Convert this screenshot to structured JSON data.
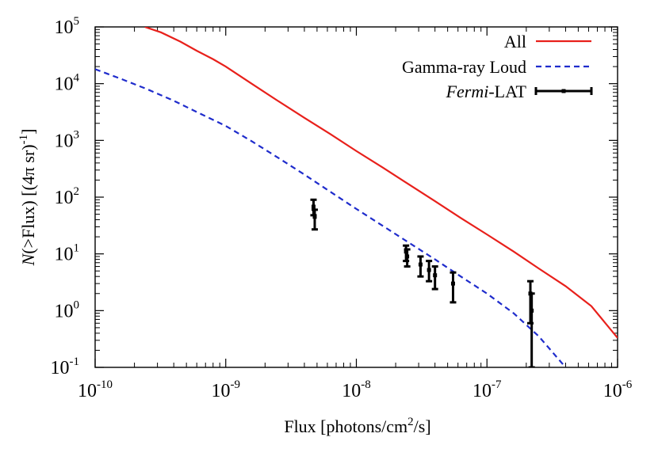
{
  "chart_data": {
    "type": "line",
    "xscale": "log",
    "yscale": "log",
    "xlim": [
      1e-10,
      1e-06
    ],
    "ylim": [
      0.1,
      100000
    ],
    "xlabel": "Flux [photons/cm²/s]",
    "xlabel_parts": {
      "pre": "Flux [photons/cm",
      "sup": "2",
      "post": "/s]"
    },
    "ylabel_parts": {
      "italic": "N",
      "pre": "(>Flux) [(4π sr)",
      "sup": "-1",
      "post": "]"
    },
    "x_ticks": [
      {
        "value": 1e-10,
        "base": "10",
        "exp": "-10"
      },
      {
        "value": 1e-09,
        "base": "10",
        "exp": "-9"
      },
      {
        "value": 1e-08,
        "base": "10",
        "exp": "-8"
      },
      {
        "value": 1e-07,
        "base": "10",
        "exp": "-7"
      },
      {
        "value": 1e-06,
        "base": "10",
        "exp": "-6"
      }
    ],
    "y_ticks": [
      {
        "value": 0.1,
        "base": "10",
        "exp": "-1"
      },
      {
        "value": 1,
        "base": "10",
        "exp": "0"
      },
      {
        "value": 10,
        "base": "10",
        "exp": "1"
      },
      {
        "value": 100,
        "base": "10",
        "exp": "2"
      },
      {
        "value": 1000,
        "base": "10",
        "exp": "3"
      },
      {
        "value": 10000,
        "base": "10",
        "exp": "4"
      },
      {
        "value": 100000,
        "base": "10",
        "exp": "5"
      }
    ],
    "legend_position": "top-right",
    "grid": false,
    "series": [
      {
        "name": "All",
        "style": "solid",
        "color": "#e8201b",
        "x": [
          2.4e-10,
          3.2e-10,
          4.5e-10,
          6e-10,
          8e-10,
          1e-09,
          1.6e-09,
          2.5e-09,
          4e-09,
          6.3e-09,
          1e-08,
          1.6e-08,
          2.5e-08,
          4e-08,
          6.3e-08,
          1e-07,
          1.6e-07,
          2.5e-07,
          4e-07,
          6.3e-07,
          1e-06
        ],
        "y": [
          100000,
          80000,
          55000,
          38000,
          27000,
          20000,
          9800,
          5000,
          2500,
          1300,
          650,
          330,
          170,
          85,
          43,
          22,
          11,
          5.5,
          2.7,
          1.2,
          0.33
        ]
      },
      {
        "name": "Gamma-ray Loud",
        "name_parts": {
          "pre": "Gamma-ray Loud"
        },
        "style": "dashed",
        "color": "#1f2ccc",
        "x": [
          1e-10,
          1.6e-10,
          2.5e-10,
          4e-10,
          6.3e-10,
          1e-09,
          1.6e-09,
          2.5e-09,
          4e-09,
          6.3e-09,
          1e-08,
          1.6e-08,
          2.5e-08,
          4e-08,
          6.3e-08,
          1e-07,
          1.6e-07,
          2.5e-07,
          4e-07
        ],
        "y": [
          18000,
          12000,
          8000,
          5000,
          3000,
          1800,
          950,
          500,
          250,
          125,
          62,
          31,
          16,
          8,
          4,
          2,
          0.9,
          0.35,
          0.1
        ]
      },
      {
        "name": "Fermi-LAT",
        "name_parts": {
          "italic": "Fermi",
          "post": "-LAT"
        },
        "style": "errorbar",
        "color": "#000000",
        "points": [
          {
            "x": 4.7e-09,
            "y": 68,
            "ylo": 48,
            "yhi": 90
          },
          {
            "x": 4.8e-09,
            "y": 45,
            "ylo": 27,
            "yhi": 60
          },
          {
            "x": 2.4e-08,
            "y": 11,
            "ylo": 7.5,
            "yhi": 14
          },
          {
            "x": 2.45e-08,
            "y": 9,
            "ylo": 6,
            "yhi": 12
          },
          {
            "x": 3.1e-08,
            "y": 6.5,
            "ylo": 4,
            "yhi": 9
          },
          {
            "x": 3.6e-08,
            "y": 5.2,
            "ylo": 3.3,
            "yhi": 7.5
          },
          {
            "x": 4e-08,
            "y": 4.2,
            "ylo": 2.4,
            "yhi": 6
          },
          {
            "x": 5.5e-08,
            "y": 3,
            "ylo": 1.4,
            "yhi": 4.7
          },
          {
            "x": 2.15e-07,
            "y": 2,
            "ylo": 0.6,
            "yhi": 3.3
          },
          {
            "x": 2.2e-07,
            "y": 1,
            "ylo": 0.1,
            "yhi": 2
          }
        ]
      }
    ]
  }
}
